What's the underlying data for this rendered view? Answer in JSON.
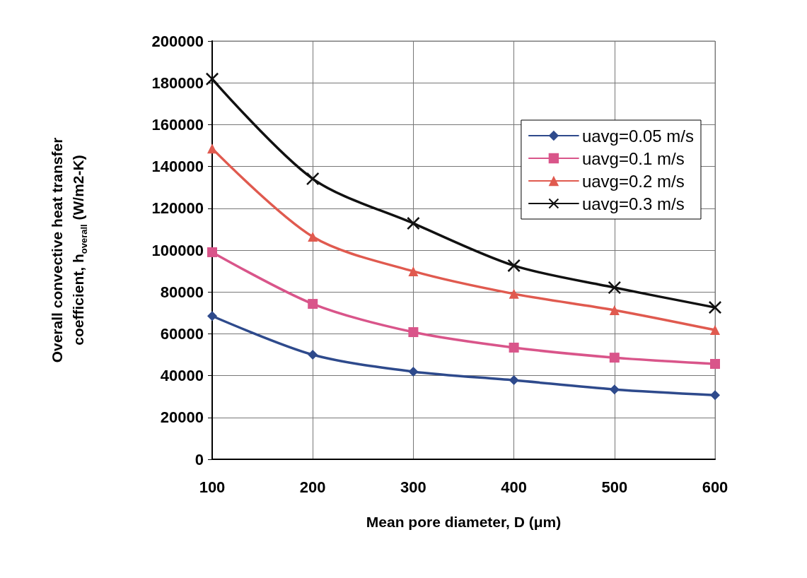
{
  "chart_data": {
    "type": "line",
    "xlabel": "Mean pore diameter, D (μm)",
    "ylabel": "Overall convective heat transfer coefficient, h$_{overall}$ (W/m2-K)",
    "x": [
      100,
      200,
      300,
      400,
      500,
      600
    ],
    "xlim": [
      100,
      600
    ],
    "xticks": [
      100,
      200,
      300,
      400,
      500,
      600
    ],
    "ylim": [
      0,
      200000
    ],
    "yticks": [
      0,
      20000,
      40000,
      60000,
      80000,
      100000,
      120000,
      140000,
      160000,
      180000,
      200000
    ],
    "grid": true,
    "legend": "right",
    "line_style": "solid",
    "series": [
      {
        "name": "uavg=0.05 m/s",
        "color": "#2e4a8c",
        "marker": "diamond",
        "values": [
          68500,
          50000,
          41900,
          37800,
          33400,
          30700
        ]
      },
      {
        "name": "uavg=0.1 m/s",
        "color": "#d9558a",
        "marker": "square",
        "values": [
          99000,
          74300,
          60800,
          53400,
          48600,
          45600
        ]
      },
      {
        "name": "uavg=0.2 m/s",
        "color": "#e05a4f",
        "marker": "triangle",
        "values": [
          148600,
          106400,
          89900,
          79100,
          71300,
          61800
        ]
      },
      {
        "name": "uavg=0.3 m/s",
        "color": "#111111",
        "marker": "cross",
        "values": [
          181800,
          134100,
          112800,
          92600,
          82100,
          72600
        ]
      }
    ]
  }
}
